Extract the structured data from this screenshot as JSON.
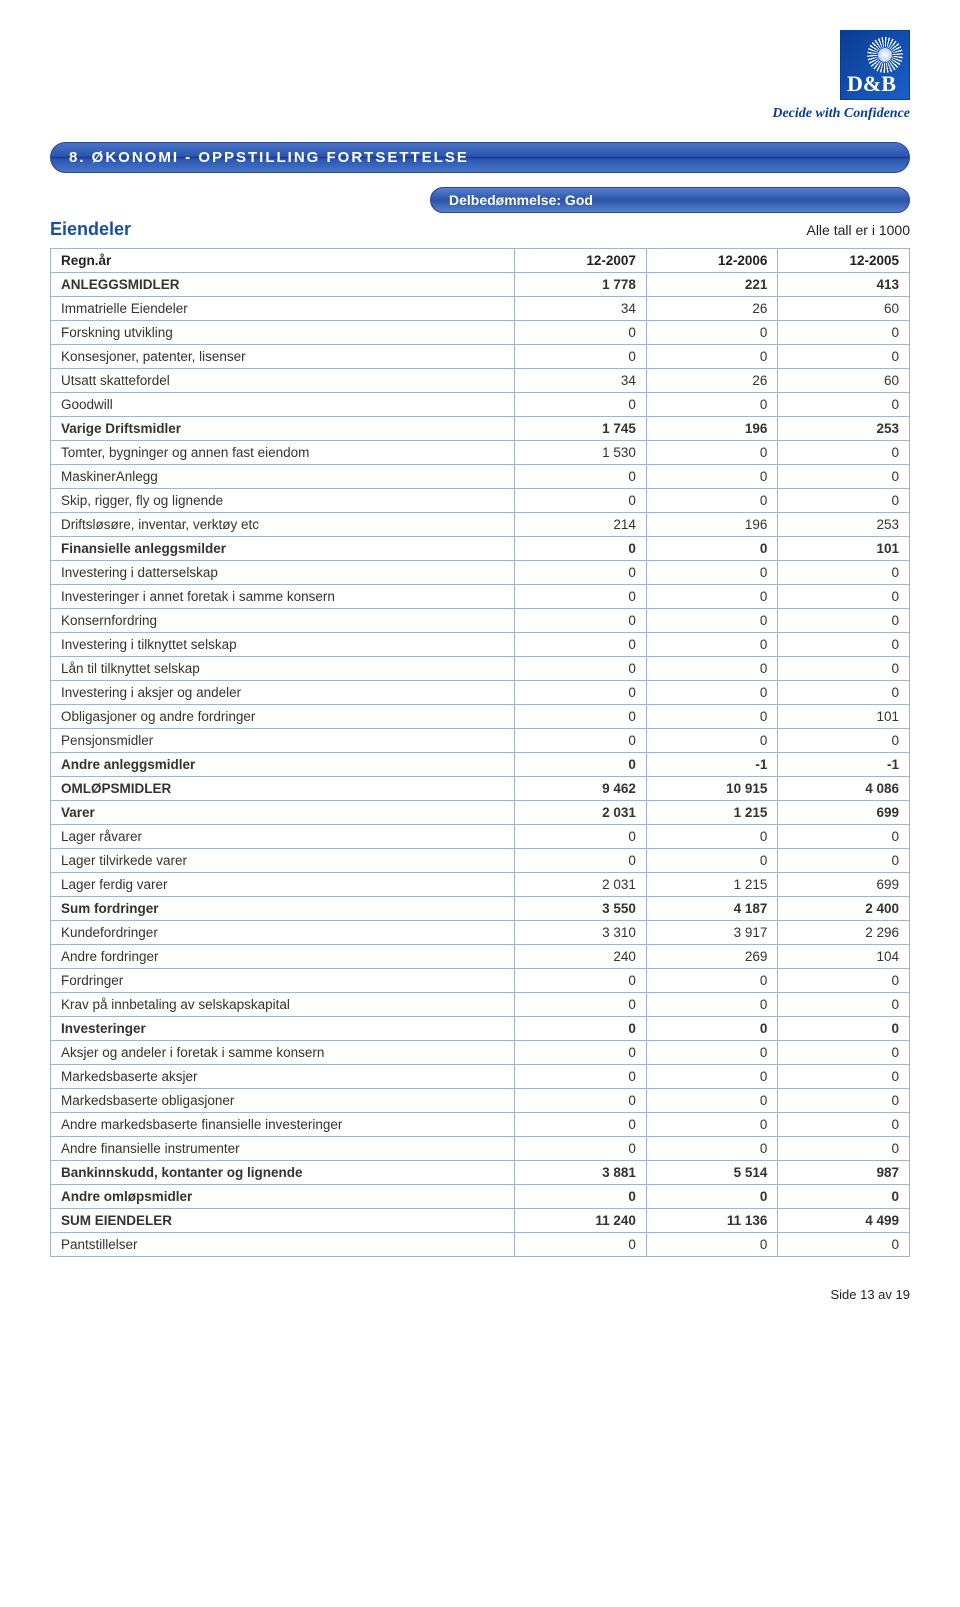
{
  "logo": {
    "brand": "D&B",
    "tagline": "Decide with Confidence"
  },
  "section_title": "8. ØKONOMI - OPPSTILLING FORTSETTELSE",
  "sub_badge": "Delbedømmelse: God",
  "subheader_left": "Eiendeler",
  "subheader_right": "Alle tall er i 1000",
  "table": {
    "header": [
      "Regn.år",
      "12-2007",
      "12-2006",
      "12-2005"
    ],
    "rows": [
      {
        "label": "ANLEGGSMIDLER",
        "v": [
          "1 778",
          "221",
          "413"
        ],
        "bold": true
      },
      {
        "label": "Immatrielle Eiendeler",
        "v": [
          "34",
          "26",
          "60"
        ]
      },
      {
        "label": "Forskning utvikling",
        "v": [
          "0",
          "0",
          "0"
        ]
      },
      {
        "label": "Konsesjoner, patenter, lisenser",
        "v": [
          "0",
          "0",
          "0"
        ]
      },
      {
        "label": "Utsatt skattefordel",
        "v": [
          "34",
          "26",
          "60"
        ]
      },
      {
        "label": "Goodwill",
        "v": [
          "0",
          "0",
          "0"
        ]
      },
      {
        "label": "Varige Driftsmidler",
        "v": [
          "1 745",
          "196",
          "253"
        ],
        "bold": true
      },
      {
        "label": "Tomter, bygninger og annen fast eiendom",
        "v": [
          "1 530",
          "0",
          "0"
        ]
      },
      {
        "label": "MaskinerAnlegg",
        "v": [
          "0",
          "0",
          "0"
        ]
      },
      {
        "label": "Skip, rigger, fly og lignende",
        "v": [
          "0",
          "0",
          "0"
        ]
      },
      {
        "label": "Driftsløsøre, inventar, verktøy etc",
        "v": [
          "214",
          "196",
          "253"
        ]
      },
      {
        "label": "Finansielle anleggsmilder",
        "v": [
          "0",
          "0",
          "101"
        ],
        "bold": true
      },
      {
        "label": "Investering i datterselskap",
        "v": [
          "0",
          "0",
          "0"
        ]
      },
      {
        "label": "Investeringer i annet foretak i samme konsern",
        "v": [
          "0",
          "0",
          "0"
        ]
      },
      {
        "label": "Konsernfordring",
        "v": [
          "0",
          "0",
          "0"
        ]
      },
      {
        "label": "Investering i tilknyttet selskap",
        "v": [
          "0",
          "0",
          "0"
        ]
      },
      {
        "label": "Lån til tilknyttet selskap",
        "v": [
          "0",
          "0",
          "0"
        ]
      },
      {
        "label": "Investering i aksjer og andeler",
        "v": [
          "0",
          "0",
          "0"
        ]
      },
      {
        "label": "Obligasjoner og andre fordringer",
        "v": [
          "0",
          "0",
          "101"
        ]
      },
      {
        "label": "Pensjonsmidler",
        "v": [
          "0",
          "0",
          "0"
        ]
      },
      {
        "label": "Andre anleggsmidler",
        "v": [
          "0",
          "-1",
          "-1"
        ],
        "bold": true
      },
      {
        "label": "OMLØPSMIDLER",
        "v": [
          "9 462",
          "10 915",
          "4 086"
        ],
        "bold": true
      },
      {
        "label": "Varer",
        "v": [
          "2 031",
          "1 215",
          "699"
        ],
        "bold": true
      },
      {
        "label": "Lager råvarer",
        "v": [
          "0",
          "0",
          "0"
        ]
      },
      {
        "label": "Lager tilvirkede varer",
        "v": [
          "0",
          "0",
          "0"
        ]
      },
      {
        "label": "Lager ferdig varer",
        "v": [
          "2 031",
          "1 215",
          "699"
        ]
      },
      {
        "label": "Sum fordringer",
        "v": [
          "3 550",
          "4 187",
          "2 400"
        ],
        "bold": true
      },
      {
        "label": "Kundefordringer",
        "v": [
          "3 310",
          "3 917",
          "2 296"
        ]
      },
      {
        "label": "Andre fordringer",
        "v": [
          "240",
          "269",
          "104"
        ]
      },
      {
        "label": "Fordringer",
        "v": [
          "0",
          "0",
          "0"
        ]
      },
      {
        "label": "Krav på innbetaling av selskapskapital",
        "v": [
          "0",
          "0",
          "0"
        ]
      },
      {
        "label": "Investeringer",
        "v": [
          "0",
          "0",
          "0"
        ],
        "bold": true
      },
      {
        "label": "Aksjer og andeler i foretak i samme konsern",
        "v": [
          "0",
          "0",
          "0"
        ]
      },
      {
        "label": "Markedsbaserte aksjer",
        "v": [
          "0",
          "0",
          "0"
        ]
      },
      {
        "label": "Markedsbaserte obligasjoner",
        "v": [
          "0",
          "0",
          "0"
        ]
      },
      {
        "label": "Andre markedsbaserte finansielle investeringer",
        "v": [
          "0",
          "0",
          "0"
        ]
      },
      {
        "label": "Andre finansielle instrumenter",
        "v": [
          "0",
          "0",
          "0"
        ]
      },
      {
        "label": "Bankinnskudd, kontanter og lignende",
        "v": [
          "3 881",
          "5 514",
          "987"
        ],
        "bold": true
      },
      {
        "label": "Andre omløpsmidler",
        "v": [
          "0",
          "0",
          "0"
        ],
        "bold": true
      },
      {
        "label": "SUM EIENDELER",
        "v": [
          "11 240",
          "11 136",
          "4 499"
        ],
        "bold": true
      },
      {
        "label": "Pantstillelser",
        "v": [
          "0",
          "0",
          "0"
        ]
      }
    ]
  },
  "footer": "Side 13 av 19"
}
